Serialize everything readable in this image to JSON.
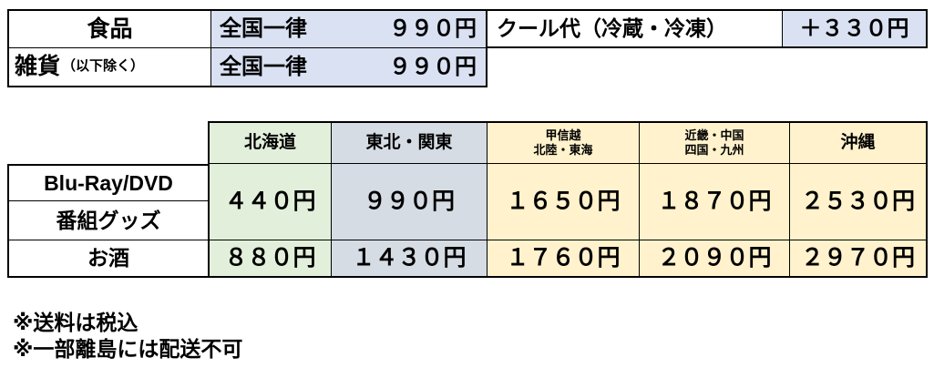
{
  "colors": {
    "blue_top": "#D9E1F2",
    "blue_column": "#D6DCE4",
    "green": "#E2EFDA",
    "yellow": "#FFF2CC",
    "border": "#000000",
    "text": "#000000",
    "background": "#FFFFFF"
  },
  "fee_table_top": {
    "food_row": {
      "category": "食品",
      "region": "全国一律",
      "price": "９９０円"
    },
    "goods_row": {
      "category": "雑貨",
      "category_note": "（以下除く）",
      "region": "全国一律",
      "price": "９９０円"
    },
    "cool": {
      "label": "クール代（冷蔵・冷凍）",
      "price": "＋３３０円"
    }
  },
  "fee_table_regions": {
    "row_labels": [
      "Blu-Ray/DVD",
      "番組グッズ",
      "お酒"
    ],
    "columns": [
      "北海道",
      "東北・関東",
      "甲信越\n北陸・東海",
      "近畿・中国\n四国・九州",
      "沖縄"
    ],
    "media_goods_prices": [
      "４４０円",
      "９９０円",
      "１６５０円",
      "１８７０円",
      "２５３０円"
    ],
    "sake_prices": [
      "８８０円",
      "１４３０円",
      "１７６０円",
      "２０９０円",
      "２９７０円"
    ]
  },
  "notes": [
    "※送料は税込",
    "※一部離島には配送不可"
  ]
}
